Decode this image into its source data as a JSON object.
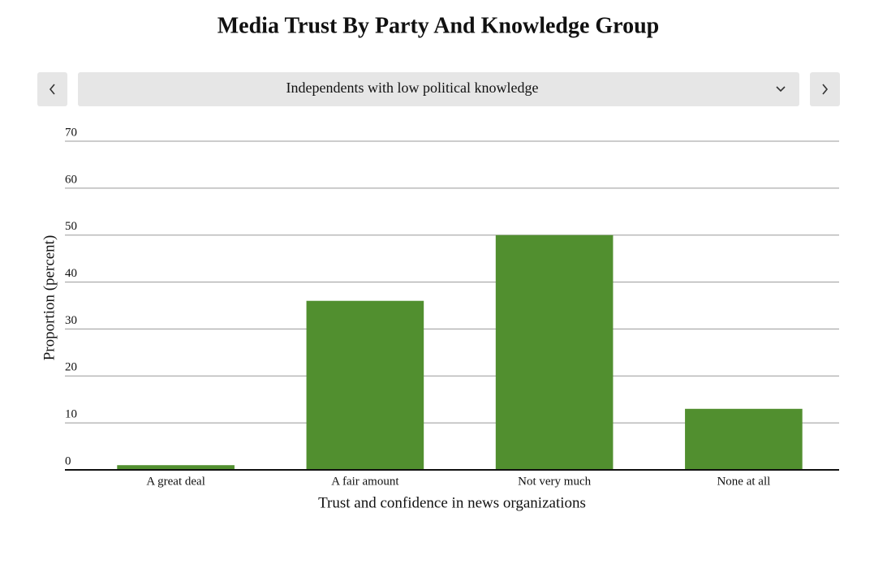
{
  "chart_data": {
    "type": "bar",
    "title": "Media Trust By Party And Knowledge Group",
    "selector": "Independents with low political knowledge",
    "categories": [
      "A great deal",
      "A fair amount",
      "Not very much",
      "None at all"
    ],
    "values": [
      1,
      36,
      50,
      13
    ],
    "color": "#518f2f",
    "x_label": "Trust and confidence in news organizations",
    "y_label": "Proportion (percent)",
    "ylim": [
      0,
      70
    ],
    "yticks": [
      0,
      10,
      20,
      30,
      40,
      50,
      60,
      70
    ],
    "grid": true
  }
}
